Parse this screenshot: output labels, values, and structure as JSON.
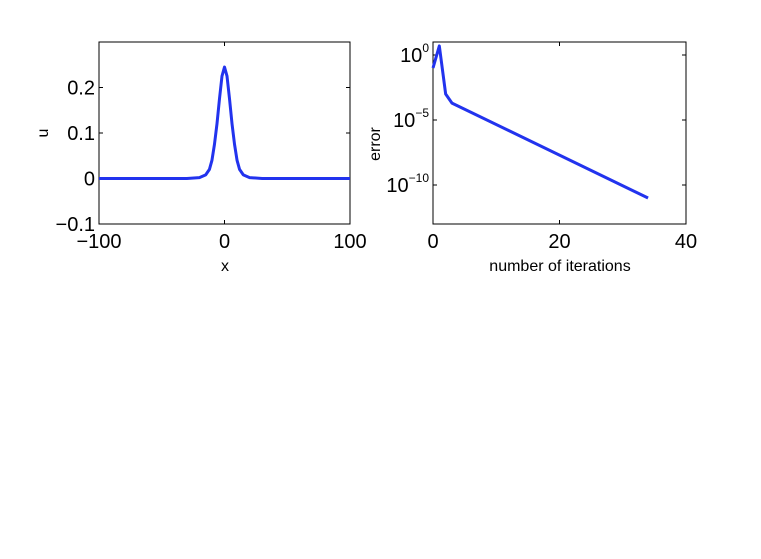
{
  "chart_data": [
    {
      "type": "line",
      "title": "",
      "xlabel": "x",
      "ylabel": "u",
      "xlim": [
        -100,
        100
      ],
      "ylim": [
        -0.1,
        0.3
      ],
      "xticks": [
        -100,
        0,
        100
      ],
      "xtick_labels": [
        "−100",
        "0",
        "100"
      ],
      "yticks": [
        -0.1,
        0,
        0.1,
        0.2
      ],
      "ytick_labels": [
        "−0.1",
        "0",
        "0.1",
        "0.2"
      ],
      "grid": false,
      "line_color": "#2233ee",
      "series": [
        {
          "x": [
            -100,
            -60,
            -30,
            -20,
            -15,
            -12,
            -10,
            -8,
            -6,
            -4,
            -2,
            0,
            2,
            4,
            6,
            8,
            10,
            12,
            15,
            20,
            30,
            60,
            100
          ],
          "y": [
            0,
            0,
            0,
            0.002,
            0.008,
            0.02,
            0.04,
            0.075,
            0.12,
            0.175,
            0.225,
            0.245,
            0.225,
            0.175,
            0.12,
            0.075,
            0.04,
            0.02,
            0.008,
            0.002,
            0,
            0,
            0
          ]
        }
      ]
    },
    {
      "type": "line",
      "title": "",
      "xlabel": "number of iterations",
      "ylabel": "error",
      "xlim": [
        0,
        40
      ],
      "ylim_exponent": [
        -13,
        1
      ],
      "yscale": "log",
      "xticks": [
        0,
        20,
        40
      ],
      "xtick_labels": [
        "0",
        "20",
        "40"
      ],
      "yticks": [
        {
          "base": "10",
          "exp": "0",
          "value_exp": 0
        },
        {
          "base": "10",
          "exp": "−5",
          "value_exp": -5
        },
        {
          "base": "10",
          "exp": "−10",
          "value_exp": -10
        }
      ],
      "grid": false,
      "line_color": "#2233ee",
      "series": [
        {
          "x": [
            0,
            1,
            2,
            3,
            34
          ],
          "y": [
            0.1,
            5,
            0.001,
            0.0002,
            1e-11
          ]
        }
      ]
    }
  ]
}
